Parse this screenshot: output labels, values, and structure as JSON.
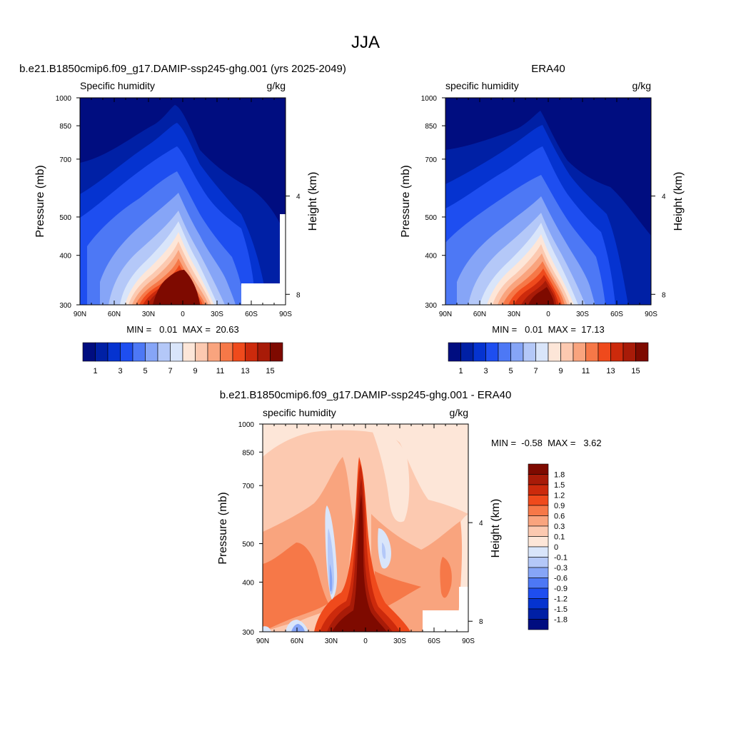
{
  "figure_title": "JJA",
  "chart_data": [
    {
      "type": "heatmap",
      "id": "model",
      "title": "b.e21.B1850cmip6.f09_g17.DAMIP-ssp245-ghg.001 (yrs 2025-2049)",
      "subtitle_left": "Specific humidity",
      "subtitle_right": "g/kg",
      "ylabel": "Pressure (mb)",
      "ylabel_right": "Height (km)",
      "x_ticks": [
        "90N",
        "60N",
        "30N",
        "0",
        "30S",
        "60S",
        "90S"
      ],
      "x_range": [
        90,
        -90
      ],
      "y_ticks": [
        "300",
        "400",
        "500",
        "700",
        "850",
        "1000"
      ],
      "y_range_mb": [
        1000,
        300
      ],
      "y_scale": "log",
      "height_ticks": [
        "4",
        "8"
      ],
      "min_max_text": "MIN =   0.01  MAX =  20.63",
      "min": 0.01,
      "max": 20.63,
      "levels": [
        1,
        2,
        3,
        4,
        5,
        6,
        7,
        8,
        9,
        10,
        11,
        12,
        13,
        14,
        15
      ],
      "colorbar_labels": [
        "1",
        "3",
        "5",
        "7",
        "9",
        "11",
        "13",
        "15"
      ],
      "colorbar_orientation": "horizontal",
      "colors": [
        "#000d80",
        "#0020a5",
        "#0533d0",
        "#1e4ef0",
        "#4d78f5",
        "#86a5f7",
        "#b4c8f8",
        "#d9e5fa",
        "#fde6d8",
        "#fcc9b0",
        "#f9a47e",
        "#f67848",
        "#ef4a1c",
        "#cc2a0c",
        "#a81b08",
        "#7e0a00"
      ]
    },
    {
      "type": "heatmap",
      "id": "era40",
      "title": "ERA40",
      "subtitle_left": "specific humidity",
      "subtitle_right": "g/kg",
      "ylabel": "Pressure (mb)",
      "ylabel_right": "Height (km)",
      "x_ticks": [
        "90N",
        "60N",
        "30N",
        "0",
        "30S",
        "60S",
        "90S"
      ],
      "x_range": [
        90,
        -90
      ],
      "y_ticks": [
        "300",
        "400",
        "500",
        "700",
        "850",
        "1000"
      ],
      "y_range_mb": [
        1000,
        300
      ],
      "y_scale": "log",
      "height_ticks": [
        "4",
        "8"
      ],
      "min_max_text": "MIN =   0.01  MAX =  17.13",
      "min": 0.01,
      "max": 17.13,
      "levels": [
        1,
        2,
        3,
        4,
        5,
        6,
        7,
        8,
        9,
        10,
        11,
        12,
        13,
        14,
        15
      ],
      "colorbar_labels": [
        "1",
        "3",
        "5",
        "7",
        "9",
        "11",
        "13",
        "15"
      ],
      "colorbar_orientation": "horizontal",
      "colors": [
        "#000d80",
        "#0020a5",
        "#0533d0",
        "#1e4ef0",
        "#4d78f5",
        "#86a5f7",
        "#b4c8f8",
        "#d9e5fa",
        "#fde6d8",
        "#fcc9b0",
        "#f9a47e",
        "#f67848",
        "#ef4a1c",
        "#cc2a0c",
        "#a81b08",
        "#7e0a00"
      ]
    },
    {
      "type": "heatmap",
      "id": "diff",
      "title": "b.e21.B1850cmip6.f09_g17.DAMIP-ssp245-ghg.001 - ERA40",
      "subtitle_left": "specific humidity",
      "subtitle_right": "g/kg",
      "ylabel": "Pressure (mb)",
      "ylabel_right": "Height (km)",
      "x_ticks": [
        "90N",
        "60N",
        "30N",
        "0",
        "30S",
        "60S",
        "90S"
      ],
      "x_range": [
        90,
        -90
      ],
      "y_ticks": [
        "300",
        "400",
        "500",
        "700",
        "850",
        "1000"
      ],
      "y_range_mb": [
        1000,
        300
      ],
      "y_scale": "log",
      "height_ticks": [
        "4",
        "8"
      ],
      "min_max_text": "MIN =  -0.58  MAX =   3.62",
      "min": -0.58,
      "max": 3.62,
      "levels": [
        -1.8,
        -1.5,
        -1.2,
        -0.9,
        -0.6,
        -0.3,
        -0.1,
        0,
        0.1,
        0.3,
        0.6,
        0.9,
        1.2,
        1.5,
        1.8
      ],
      "colorbar_labels": [
        "1.8",
        "1.5",
        "1.2",
        "0.9",
        "0.6",
        "0.3",
        "0.1",
        "0",
        "-0.1",
        "-0.3",
        "-0.6",
        "-0.9",
        "-1.2",
        "-1.5",
        "-1.8"
      ],
      "colorbar_orientation": "vertical",
      "colors": [
        "#7e0a00",
        "#a81b08",
        "#cc2a0c",
        "#ef4a1c",
        "#f67848",
        "#f9a47e",
        "#fcc9b0",
        "#fde6d8",
        "#d9e5fa",
        "#b4c8f8",
        "#86a5f7",
        "#4d78f5",
        "#1e4ef0",
        "#0533d0",
        "#0020a5",
        "#000d80"
      ]
    }
  ]
}
